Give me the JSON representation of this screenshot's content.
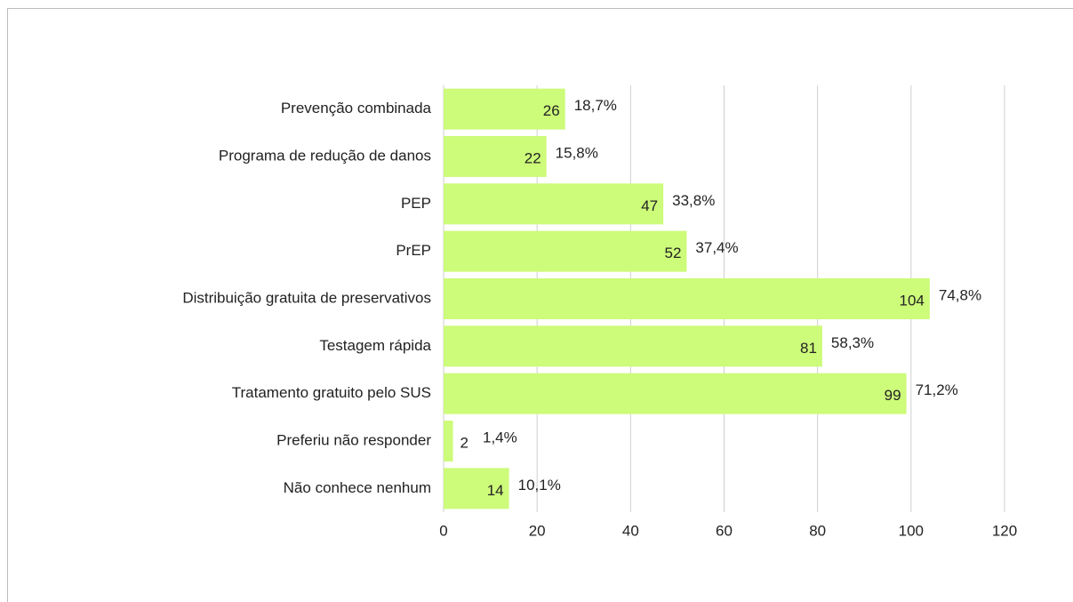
{
  "chart_data": {
    "type": "bar",
    "orientation": "horizontal",
    "categories": [
      "Prevenção combinada",
      "Programa de redução de danos",
      "PEP",
      "PrEP",
      "Distribuição gratuita de preservativos",
      "Testagem rápida",
      "Tratamento gratuito pelo SUS",
      "Preferiu não responder",
      "Não conhece nenhum"
    ],
    "values": [
      26,
      22,
      47,
      52,
      104,
      81,
      99,
      2,
      14
    ],
    "shares": [
      18.7,
      15.8,
      33.8,
      37.4,
      74.8,
      58.3,
      71.2,
      1.4,
      10.1
    ],
    "share_labels": [
      "18,7%",
      "15,8%",
      "33,8%",
      "37,4%",
      "74,8%",
      "58,3%",
      "71,2%",
      "1,4%",
      "10,1%"
    ],
    "color": "#cdfb7a",
    "xlim": [
      0,
      120
    ],
    "xticks": [
      0,
      20,
      40,
      60,
      80,
      100,
      120
    ],
    "grid": true
  }
}
